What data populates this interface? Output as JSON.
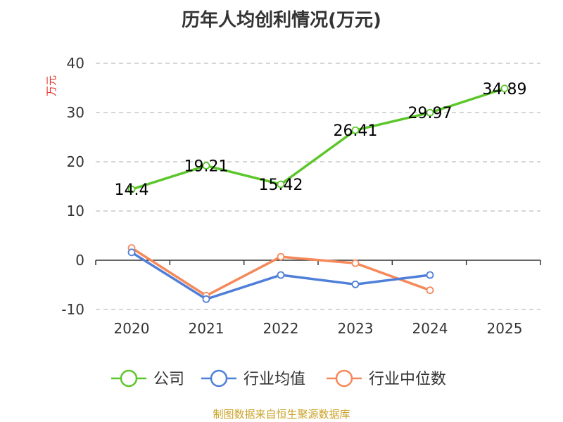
{
  "title": "历年人均创利情况(万元)",
  "source": "制图数据来自恒生聚源数据库",
  "chart_data": {
    "type": "line",
    "title": "历年人均创利情况(万元)",
    "ylabel": "万元",
    "xlabel": "",
    "categories": [
      "2020",
      "2021",
      "2022",
      "2023",
      "2024",
      "2025"
    ],
    "ylim": [
      -10,
      40
    ],
    "yticks": [
      -10,
      0,
      10,
      20,
      30,
      40
    ],
    "grid": true,
    "legend_position": "bottom",
    "series": [
      {
        "name": "公司",
        "color": "#5cc72a",
        "values": [
          14.4,
          19.21,
          15.42,
          26.41,
          29.97,
          34.89
        ],
        "labels": [
          "14.4",
          "19.21",
          "15.42",
          "26.41",
          "29.97",
          "34.89"
        ]
      },
      {
        "name": "行业均值",
        "color": "#4f7fd9",
        "values": [
          1.6,
          -7.9,
          -3.0,
          -4.9,
          -3.0,
          null
        ]
      },
      {
        "name": "行业中位数",
        "color": "#f5895a",
        "values": [
          2.5,
          -7.2,
          0.7,
          -0.6,
          -6.1,
          null
        ]
      }
    ]
  }
}
